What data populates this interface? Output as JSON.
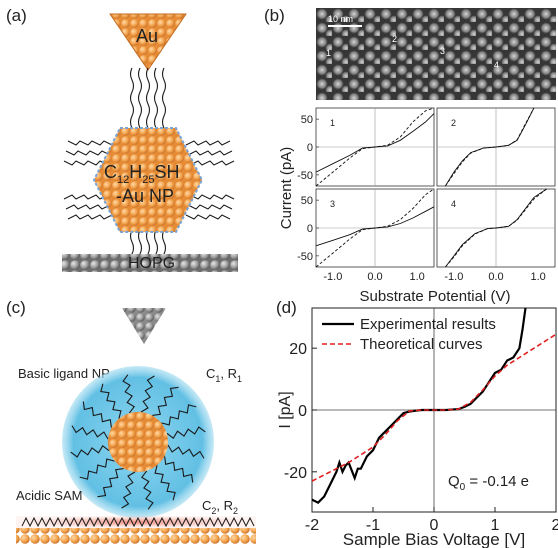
{
  "figure": {
    "panel_a": {
      "label": "(a)",
      "tip_label": "Au",
      "np_label_line1_main": "C",
      "np_label_line1_sub1": "12",
      "np_label_line1_mid": "H",
      "np_label_line1_sub2": "25",
      "np_label_line1_end": "SH",
      "np_label_line2": "-Au NP",
      "substrate_label": "HOPG",
      "colors": {
        "gold": "#f2a24a",
        "substrate": "#8a8a8a",
        "ligand": "#1a1a1a"
      }
    },
    "panel_b": {
      "label": "(b)",
      "scale_bar": "10 nm",
      "site_labels": [
        "1",
        "2",
        "3",
        "4"
      ],
      "ylabel": "Current (pA)",
      "xlabel": "Substrate Potential (V)",
      "subplot_labels": [
        "1",
        "2",
        "3",
        "4"
      ],
      "y_ticks": [
        "50",
        "0",
        "-50"
      ],
      "x_ticks": [
        "-1.0",
        "0.0",
        "1.0"
      ]
    },
    "panel_c": {
      "label": "(c)",
      "ligand_label": "Basic ligand NP",
      "sam_label": "Acidic SAM",
      "c1_main": "C",
      "c1_sub": "1",
      "c1_rest": ", R",
      "c1_sub2": "1",
      "c2_main": "C",
      "c2_sub": "2",
      "c2_rest": ", R",
      "c2_sub2": "2",
      "colors": {
        "shell": "#6ec6e6",
        "gold": "#f2a24a"
      }
    },
    "panel_d": {
      "label": "(d)",
      "legend_experimental": "Experimental results",
      "legend_theoretical": "Theoretical curves",
      "annotation": "Q",
      "annotation_sub": "0",
      "annotation_rest": " = -0.14 e",
      "ylabel": "I [pA]",
      "xlabel": "Sample Bias Voltage [V]",
      "y_ticks": [
        "20",
        "0",
        "-20"
      ],
      "x_ticks": [
        "-2",
        "-1",
        "0",
        "1",
        "2"
      ]
    }
  },
  "chart_data": [
    {
      "type": "line",
      "panel": "d",
      "xlim": [
        -2,
        2
      ],
      "ylim": [
        -33,
        33
      ],
      "xlabel": "Sample Bias Voltage [V]",
      "ylabel": "I [pA]",
      "legend": "top-left",
      "series": [
        {
          "name": "Experimental results",
          "style": "solid",
          "color": "#000000",
          "x": [
            -2.0,
            -1.9,
            -1.8,
            -1.7,
            -1.6,
            -1.55,
            -1.5,
            -1.45,
            -1.4,
            -1.3,
            -1.25,
            -1.2,
            -1.1,
            -1.0,
            -0.9,
            -0.8,
            -0.7,
            -0.6,
            -0.5,
            -0.4,
            -0.3,
            -0.2,
            0.0,
            0.2,
            0.4,
            0.5,
            0.6,
            0.7,
            0.8,
            0.9,
            1.0,
            1.1,
            1.2,
            1.3,
            1.4,
            1.45,
            1.5
          ],
          "y": [
            -29,
            -30,
            -28,
            -24,
            -20,
            -17,
            -20,
            -18,
            -17,
            -22,
            -19,
            -19,
            -15,
            -13,
            -9,
            -7,
            -5,
            -3,
            -1,
            -0.5,
            -0.2,
            0,
            0,
            0,
            0.3,
            1,
            2,
            4,
            6,
            9,
            12,
            13,
            16,
            17,
            20,
            26,
            33
          ]
        },
        {
          "name": "Theoretical curves",
          "style": "dashed",
          "color": "#e02020",
          "x": [
            -2.0,
            -1.8,
            -1.6,
            -1.4,
            -1.2,
            -1.0,
            -0.8,
            -0.6,
            -0.4,
            -0.2,
            0.0,
            0.2,
            0.4,
            0.6,
            0.8,
            1.0,
            1.2,
            1.4,
            1.6,
            1.8,
            2.0
          ],
          "y": [
            -23,
            -21,
            -19,
            -17,
            -14.5,
            -12,
            -8,
            -3.5,
            -0.3,
            0,
            0,
            0,
            0.3,
            2.5,
            6.5,
            11,
            14.5,
            17,
            19.5,
            22,
            24.5
          ]
        }
      ]
    },
    {
      "type": "line",
      "panel": "b",
      "title": "1",
      "xlim": [
        -1.4,
        1.4
      ],
      "ylim": [
        -70,
        70
      ],
      "series": [
        {
          "style": "solid",
          "x": [
            -1.4,
            -1.0,
            -0.6,
            -0.3,
            0,
            0.3,
            0.6,
            0.9,
            1.2,
            1.4
          ],
          "y": [
            -45,
            -30,
            -15,
            -2,
            0,
            2,
            12,
            28,
            45,
            60
          ]
        },
        {
          "style": "dashed",
          "x": [
            -1.4,
            -1.0,
            -0.6,
            -0.3,
            0,
            0.3,
            0.6,
            0.9,
            1.2,
            1.4
          ],
          "y": [
            -70,
            -45,
            -20,
            -3,
            0,
            3,
            18,
            45,
            65,
            70
          ]
        }
      ]
    },
    {
      "type": "line",
      "panel": "b",
      "title": "2",
      "xlim": [
        -1.4,
        1.4
      ],
      "ylim": [
        -70,
        70
      ],
      "series": [
        {
          "style": "solid",
          "x": [
            -1.2,
            -1.0,
            -0.8,
            -0.6,
            -0.3,
            0,
            0.3,
            0.5,
            0.7,
            0.9
          ],
          "y": [
            -70,
            -45,
            -25,
            -10,
            -2,
            0,
            3,
            12,
            40,
            70
          ]
        },
        {
          "style": "dashed",
          "x": [
            -1.2,
            -1.0,
            -0.8,
            -0.6,
            -0.3,
            0,
            0.3,
            0.5,
            0.7,
            0.9
          ],
          "y": [
            -70,
            -48,
            -27,
            -11,
            -2,
            0,
            3,
            13,
            42,
            70
          ]
        }
      ]
    },
    {
      "type": "line",
      "panel": "b",
      "title": "3",
      "xlim": [
        -1.4,
        1.4
      ],
      "ylim": [
        -70,
        70
      ],
      "series": [
        {
          "style": "solid",
          "x": [
            -1.4,
            -1.0,
            -0.6,
            -0.3,
            0,
            0.3,
            0.6,
            0.9,
            1.2,
            1.4
          ],
          "y": [
            -32,
            -22,
            -12,
            -2,
            0,
            2,
            8,
            18,
            30,
            38
          ]
        },
        {
          "style": "dashed",
          "x": [
            -1.4,
            -1.0,
            -0.6,
            -0.3,
            0,
            0.3,
            0.6,
            0.9,
            1.2,
            1.4
          ],
          "y": [
            -70,
            -45,
            -20,
            -3,
            0,
            3,
            15,
            35,
            60,
            70
          ]
        }
      ]
    },
    {
      "type": "line",
      "panel": "b",
      "title": "4",
      "xlim": [
        -1.4,
        1.4
      ],
      "ylim": [
        -70,
        70
      ],
      "series": [
        {
          "style": "solid",
          "x": [
            -1.2,
            -1.0,
            -0.8,
            -0.5,
            -0.2,
            0,
            0.3,
            0.5,
            0.7,
            0.9,
            1.2
          ],
          "y": [
            -70,
            -50,
            -30,
            -10,
            -1,
            0,
            3,
            15,
            35,
            55,
            70
          ]
        },
        {
          "style": "dashed",
          "x": [
            -1.2,
            -1.0,
            -0.8,
            -0.5,
            -0.2,
            0,
            0.3,
            0.5,
            0.7,
            0.9,
            1.2
          ],
          "y": [
            -70,
            -52,
            -32,
            -11,
            -1,
            0,
            3,
            14,
            33,
            52,
            70
          ]
        }
      ]
    }
  ]
}
